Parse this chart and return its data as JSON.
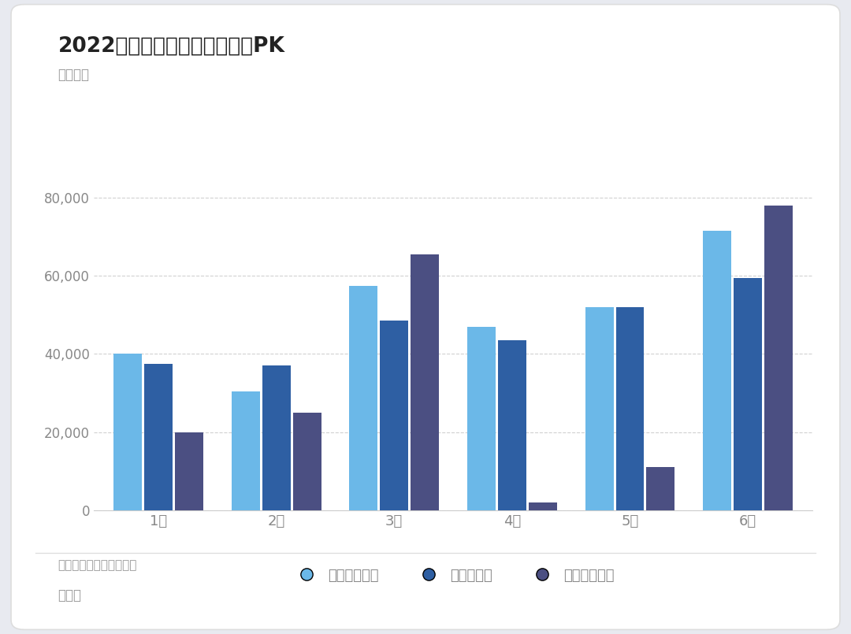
{
  "title": "2022年特斯拉和比亚迪的分类PK",
  "subtitle": "单位：台",
  "months": [
    "1月",
    "2月",
    "3月",
    "4月",
    "5月",
    "6月"
  ],
  "byd_ev": [
    40000,
    30500,
    57500,
    47000,
    52000,
    71500
  ],
  "byd_phev": [
    37500,
    37000,
    48500,
    43500,
    52000,
    59500
  ],
  "tesla_ev": [
    20000,
    25000,
    65500,
    2000,
    11000,
    78000
  ],
  "color_byd_ev": "#6BB8E8",
  "color_byd_phev": "#2E5FA3",
  "color_tesla_ev": "#4B4F82",
  "legend_labels": [
    "比亚迪纯电动",
    "比亚迪插电",
    "特斯拉纯电动"
  ],
  "source_text": "数据来源：销量上险数据",
  "author_text": "朱玉龙",
  "outer_bg": "#E8EAF0",
  "card_bg": "#FFFFFF",
  "card_edge": "#DDDDDD",
  "grid_color": "#CCCCCC",
  "axis_color": "#CCCCCC",
  "tick_color": "#888888",
  "title_color": "#222222",
  "subtitle_color": "#999999",
  "source_color": "#999999",
  "author_color": "#999999",
  "ylim": [
    0,
    90000
  ],
  "yticks": [
    0,
    20000,
    40000,
    60000,
    80000
  ],
  "logo_bg": "#1A2472",
  "bar_width": 0.24,
  "bar_gap": 0.02
}
